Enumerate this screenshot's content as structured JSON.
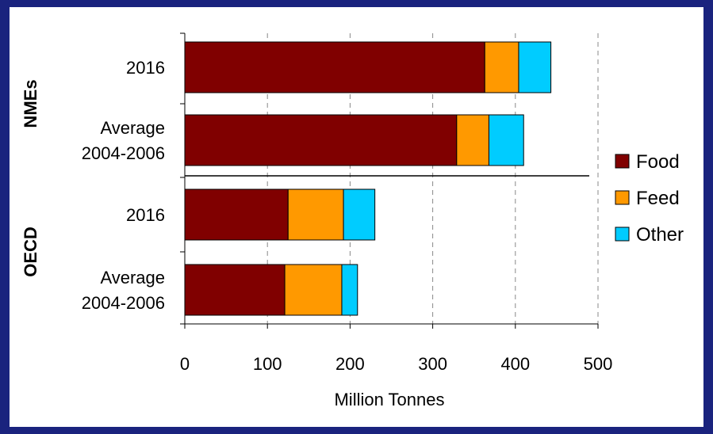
{
  "chart_data": {
    "type": "bar",
    "orientation": "horizontal",
    "stacked": true,
    "xlabel": "Million Tonnes",
    "xlim": [
      0,
      500
    ],
    "xticks": [
      0,
      100,
      200,
      300,
      400,
      500
    ],
    "grid": "vertical dashed",
    "legend_position": "right",
    "groups": [
      {
        "name": "NMEs",
        "categories": [
          "2016",
          "Average 2004-2006"
        ]
      },
      {
        "name": "OECD",
        "categories": [
          "2016",
          "Average 2004-2006"
        ]
      }
    ],
    "rows": [
      {
        "group": "NMEs",
        "label_lines": [
          "2016"
        ],
        "values": [
          363,
          41,
          39
        ]
      },
      {
        "group": "NMEs",
        "label_lines": [
          "Average",
          "2004-2006"
        ],
        "values": [
          329,
          39,
          42
        ]
      },
      {
        "group": "OECD",
        "label_lines": [
          "2016"
        ],
        "values": [
          125,
          67,
          38
        ]
      },
      {
        "group": "OECD",
        "label_lines": [
          "Average",
          "2004-2006"
        ],
        "values": [
          121,
          69,
          19
        ]
      }
    ],
    "series": [
      {
        "name": "Food",
        "color": "#800000"
      },
      {
        "name": "Feed",
        "color": "#ff9900"
      },
      {
        "name": "Other",
        "color": "#00ccff"
      }
    ]
  }
}
